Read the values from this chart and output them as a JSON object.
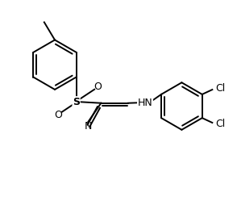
{
  "bg_color": "#ffffff",
  "line_color": "#000000",
  "line_width": 1.4,
  "figsize": [
    2.94,
    2.54
  ],
  "dpi": 100,
  "xlim": [
    0,
    10
  ],
  "ylim": [
    0,
    8.6
  ]
}
